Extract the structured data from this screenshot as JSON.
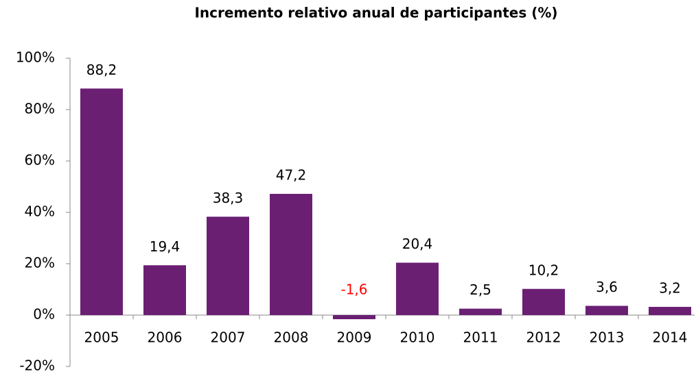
{
  "chart_data": {
    "type": "bar",
    "title": "Incremento relativo anual de participantes (%)",
    "categories": [
      "2005",
      "2006",
      "2007",
      "2008",
      "2009",
      "2010",
      "2011",
      "2012",
      "2013",
      "2014"
    ],
    "values": [
      88.2,
      19.4,
      38.3,
      47.2,
      -1.6,
      20.4,
      2.5,
      10.2,
      3.6,
      3.2
    ],
    "value_labels": [
      "88,2",
      "19,4",
      "38,3",
      "47,2",
      "-1,6",
      "20,4",
      "2,5",
      "10,2",
      "3,6",
      "3,2"
    ],
    "color": "#6b1f73",
    "negative_label_color": "#ff0000",
    "ylim": [
      -20,
      100
    ],
    "yticks": [
      {
        "value": -20,
        "label": "-20%"
      },
      {
        "value": 0,
        "label": "0%"
      },
      {
        "value": 20,
        "label": "20%"
      },
      {
        "value": 40,
        "label": "40%"
      },
      {
        "value": 60,
        "label": "60%"
      },
      {
        "value": 80,
        "label": "80%"
      },
      {
        "value": 100,
        "label": "100%"
      }
    ],
    "grid": false
  }
}
